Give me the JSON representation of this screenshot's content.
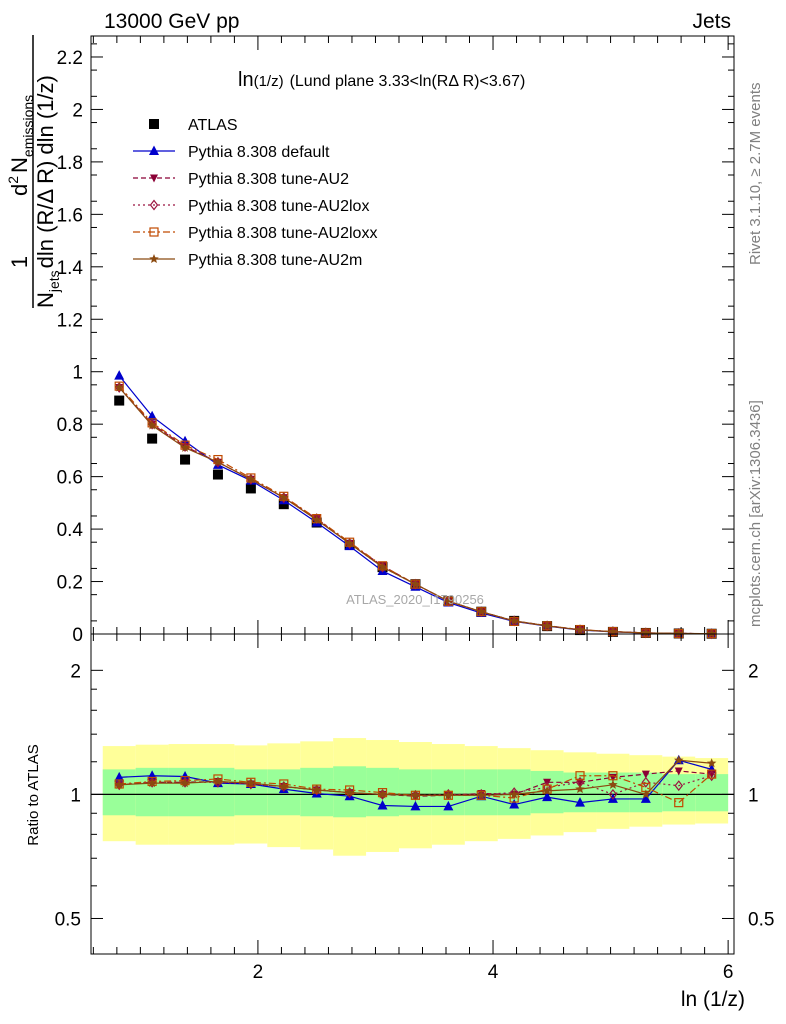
{
  "header": {
    "left": "13000 GeV pp",
    "right": "Jets"
  },
  "side_labels": {
    "rivet": "Rivet 3.1.10, ≥ 2.7M events",
    "mcplots": "mcplots.cern.ch [arXiv:1306.3436]"
  },
  "watermark": "ATLAS_2020_I1790256",
  "plot_title": {
    "main": "ln",
    "sub": "(1/z)",
    "rest": "(Lund plane 3.33<ln(RΔ R)<3.67)"
  },
  "ylabel_main": {
    "one": "1",
    "n": "N",
    "jets": "jets",
    "dln": "dln (R/Δ R) dln (1/z)",
    "d2": "d",
    "two": "2",
    "nem": "N",
    "emissions": "emissions"
  },
  "ylabel_ratio": "Ratio to ATLAS",
  "xlabel": "ln (1/z)",
  "colors": {
    "atlas": "#000000",
    "default": "#0000cc",
    "au2": "#8b0036",
    "au2lox": "#9b1540",
    "au2loxx": "#c04a00",
    "au2m": "#8b4a10",
    "band_inner": "#99ff99",
    "band_outer": "#ffff99"
  },
  "chart_data": [
    {
      "type": "scatter",
      "panel": "main",
      "ylim": [
        0,
        2.28
      ],
      "xlim": [
        0.58,
        6.05
      ],
      "yticks": [
        {
          "v": 0,
          "label": "0"
        },
        {
          "v": 0.2,
          "label": "0.2"
        },
        {
          "v": 0.4,
          "label": "0.4"
        },
        {
          "v": 0.6,
          "label": "0.6"
        },
        {
          "v": 0.8,
          "label": "0.8"
        },
        {
          "v": 1.0,
          "label": "1"
        },
        {
          "v": 1.2,
          "label": "1.2"
        },
        {
          "v": 1.4,
          "label": "1.4"
        },
        {
          "v": 1.6,
          "label": "1.6"
        },
        {
          "v": 1.8,
          "label": "1.8"
        },
        {
          "v": 2.0,
          "label": "2"
        },
        {
          "v": 2.2,
          "label": "2.2"
        }
      ],
      "x": [
        0.82,
        1.1,
        1.38,
        1.66,
        1.94,
        2.22,
        2.5,
        2.78,
        3.06,
        3.34,
        3.62,
        3.9,
        4.18,
        4.46,
        4.74,
        5.02,
        5.3,
        5.58,
        5.86
      ],
      "legend_position": "top-left",
      "series": [
        {
          "name": "ATLAS",
          "key": "atlas",
          "marker": "square",
          "line": "none",
          "values": [
            0.89,
            0.745,
            0.665,
            0.608,
            0.555,
            0.495,
            0.425,
            0.34,
            0.255,
            0.19,
            0.125,
            0.085,
            0.05,
            0.03,
            0.015,
            0.008,
            0.004,
            0.002,
            0.001
          ]
        },
        {
          "name": "Pythia 8.308 default",
          "key": "default",
          "marker": "triangle-up",
          "line": "solid",
          "values": [
            0.985,
            0.83,
            0.735,
            0.645,
            0.585,
            0.51,
            0.425,
            0.335,
            0.24,
            0.18,
            0.12,
            0.08,
            0.048,
            0.03,
            0.015,
            0.008,
            0.004,
            0.0022,
            0.0011
          ]
        },
        {
          "name": "Pythia 8.308 tune-AU2",
          "key": "au2",
          "marker": "triangle-down",
          "line": "dashed",
          "values": [
            0.94,
            0.8,
            0.715,
            0.655,
            0.59,
            0.52,
            0.44,
            0.345,
            0.26,
            0.19,
            0.125,
            0.085,
            0.05,
            0.032,
            0.016,
            0.009,
            0.0044,
            0.0022,
            0.0011
          ]
        },
        {
          "name": "Pythia 8.308 tune-AU2lox",
          "key": "au2lox",
          "marker": "diamond-open",
          "line": "dotted",
          "values": [
            0.94,
            0.8,
            0.715,
            0.655,
            0.59,
            0.52,
            0.44,
            0.345,
            0.255,
            0.19,
            0.125,
            0.085,
            0.05,
            0.031,
            0.016,
            0.009,
            0.0043,
            0.0022,
            0.0011
          ]
        },
        {
          "name": "Pythia 8.308 tune-AU2loxx",
          "key": "au2loxx",
          "marker": "square-open",
          "line": "dashdot",
          "values": [
            0.945,
            0.805,
            0.72,
            0.665,
            0.595,
            0.525,
            0.44,
            0.35,
            0.26,
            0.19,
            0.125,
            0.085,
            0.048,
            0.031,
            0.017,
            0.009,
            0.0041,
            0.0019,
            0.0011
          ]
        },
        {
          "name": "Pythia 8.308 tune-AU2m",
          "key": "au2m",
          "marker": "star",
          "line": "solid",
          "values": [
            0.94,
            0.795,
            0.71,
            0.655,
            0.59,
            0.52,
            0.435,
            0.345,
            0.255,
            0.19,
            0.125,
            0.085,
            0.05,
            0.031,
            0.016,
            0.0085,
            0.0041,
            0.0025,
            0.0012
          ]
        }
      ]
    },
    {
      "type": "scatter",
      "panel": "ratio",
      "ylabel": "Ratio to ATLAS",
      "xlabel": "ln (1/z)",
      "scale": "log",
      "ylim": [
        0.41,
        2.45
      ],
      "xlim": [
        0.58,
        6.05
      ],
      "yticks": [
        {
          "v": 0.5,
          "label": "0.5"
        },
        {
          "v": 1,
          "label": "1"
        },
        {
          "v": 2,
          "label": "2"
        }
      ],
      "xticks": [
        {
          "v": 2,
          "label": "2"
        },
        {
          "v": 4,
          "label": "4"
        },
        {
          "v": 6,
          "label": "6"
        }
      ],
      "x": [
        0.82,
        1.1,
        1.38,
        1.66,
        1.94,
        2.22,
        2.5,
        2.78,
        3.06,
        3.34,
        3.62,
        3.9,
        4.18,
        4.46,
        4.74,
        5.02,
        5.3,
        5.58,
        5.86
      ],
      "bin_edges": [
        0.68,
        0.96,
        1.24,
        1.52,
        1.8,
        2.08,
        2.36,
        2.64,
        2.92,
        3.2,
        3.48,
        3.76,
        4.04,
        4.32,
        4.6,
        4.88,
        5.16,
        5.44,
        5.72,
        6.0
      ],
      "band_inner": {
        "low": [
          0.89,
          0.885,
          0.885,
          0.885,
          0.89,
          0.89,
          0.885,
          0.88,
          0.885,
          0.89,
          0.89,
          0.89,
          0.89,
          0.9,
          0.905,
          0.905,
          0.905,
          0.91,
          0.91
        ],
        "high": [
          1.15,
          1.16,
          1.16,
          1.16,
          1.15,
          1.15,
          1.16,
          1.17,
          1.16,
          1.15,
          1.15,
          1.15,
          1.15,
          1.14,
          1.13,
          1.13,
          1.13,
          1.12,
          1.12
        ]
      },
      "band_outer": {
        "low": [
          0.77,
          0.755,
          0.755,
          0.755,
          0.76,
          0.745,
          0.735,
          0.71,
          0.725,
          0.74,
          0.755,
          0.77,
          0.78,
          0.795,
          0.81,
          0.825,
          0.835,
          0.845,
          0.85
        ],
        "high": [
          1.31,
          1.32,
          1.325,
          1.325,
          1.315,
          1.33,
          1.345,
          1.37,
          1.355,
          1.34,
          1.325,
          1.31,
          1.295,
          1.28,
          1.265,
          1.255,
          1.245,
          1.235,
          1.225
        ]
      },
      "series": [
        {
          "key": "default",
          "marker": "triangle-up",
          "line": "solid",
          "values": [
            1.1,
            1.11,
            1.105,
            1.065,
            1.06,
            1.03,
            1.005,
            0.99,
            0.94,
            0.935,
            0.935,
            0.99,
            0.945,
            0.985,
            0.955,
            0.975,
            0.975,
            1.21,
            1.15
          ]
        },
        {
          "key": "au2",
          "marker": "triangle-down",
          "line": "dashed",
          "values": [
            1.055,
            1.07,
            1.07,
            1.075,
            1.06,
            1.045,
            1.025,
            1.01,
            1.0,
            0.99,
            0.995,
            1.005,
            1.0,
            1.07,
            1.07,
            1.1,
            1.12,
            1.14,
            1.12
          ]
        },
        {
          "key": "au2lox",
          "marker": "diamond-open",
          "line": "dotted",
          "values": [
            1.055,
            1.07,
            1.07,
            1.07,
            1.06,
            1.045,
            1.025,
            1.01,
            1.0,
            0.995,
            1.0,
            1.0,
            1.01,
            1.04,
            1.07,
            1.0,
            1.07,
            1.05,
            1.11
          ]
        },
        {
          "key": "au2loxx",
          "marker": "square-open",
          "line": "dashdot",
          "values": [
            1.06,
            1.075,
            1.08,
            1.09,
            1.07,
            1.06,
            1.03,
            1.025,
            1.01,
            0.995,
            0.995,
            0.995,
            0.98,
            1.03,
            1.11,
            1.11,
            1.04,
            0.955,
            1.12
          ]
        },
        {
          "key": "au2m",
          "marker": "star",
          "line": "solid",
          "values": [
            1.055,
            1.065,
            1.065,
            1.075,
            1.065,
            1.045,
            1.025,
            1.01,
            1.0,
            0.995,
            0.995,
            0.995,
            1.0,
            1.02,
            1.03,
            1.055,
            1.0,
            1.21,
            1.19
          ]
        }
      ]
    }
  ]
}
